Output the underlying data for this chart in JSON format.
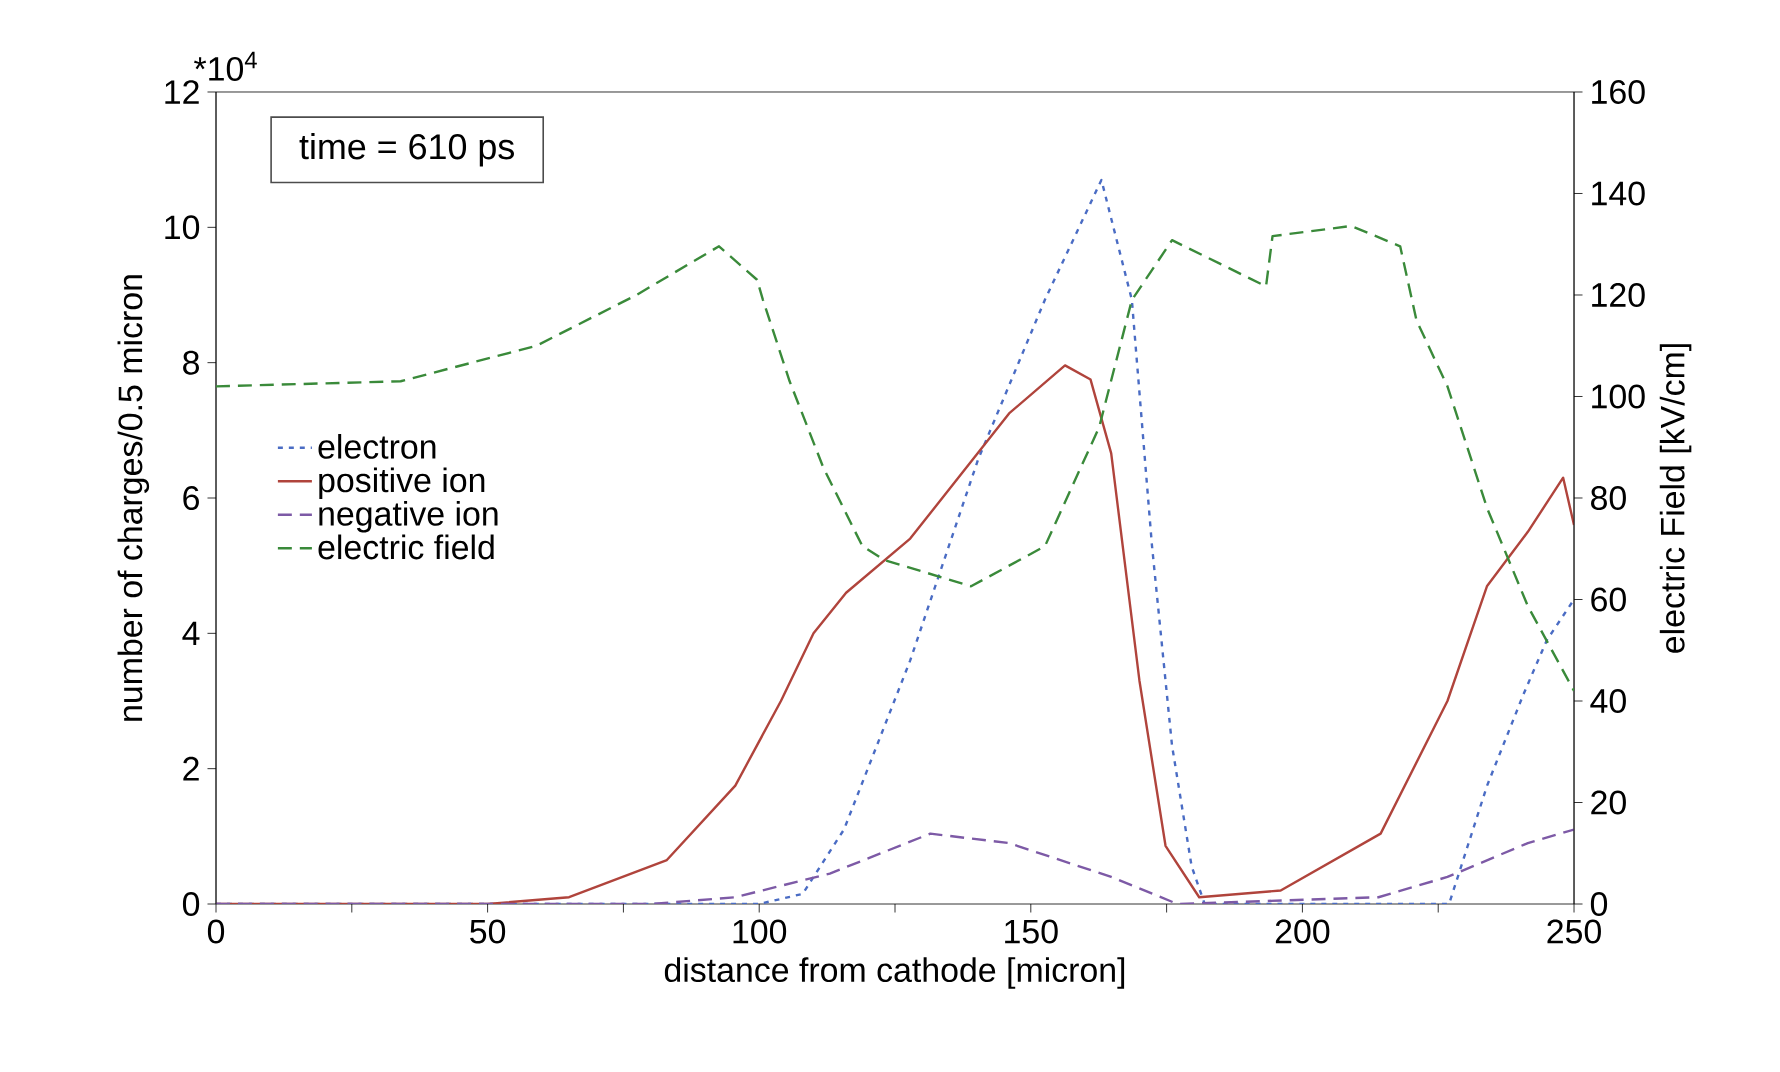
{
  "chart_data": {
    "type": "line",
    "xlabel": "distance from cathode [micron]",
    "ylabel": "number of charges/0.5 micron",
    "y2label": "electric Field [kV/cm]",
    "annotations": [
      "time = 610 ps",
      "*10$^{4}$"
    ],
    "xlim": [
      0,
      250
    ],
    "ylim": [
      0,
      12
    ],
    "y2lim": [
      0,
      160
    ],
    "xticks": [
      0,
      {
        "value": 25,
        "label": null
      },
      50,
      {
        "value": 75,
        "label": null
      },
      100,
      {
        "value": 125,
        "label": null
      },
      150,
      {
        "value": 175,
        "label": null
      },
      200,
      {
        "value": 225,
        "label": null
      },
      250
    ],
    "yticks": [
      0,
      2,
      4,
      6,
      8,
      10,
      12
    ],
    "y2ticks": [
      0,
      20,
      40,
      60,
      80,
      100,
      120,
      140,
      160
    ],
    "grid": false,
    "legend": "left",
    "marker": "none",
    "series": [
      {
        "name": "electron",
        "color": "#4a6cc4",
        "line_style": "dotted",
        "x": [
          0,
          100,
          108,
          115.6,
          127.8,
          140.3,
          152.6,
          163,
          168.6,
          172.3,
          176,
          179.6,
          182,
          227,
          234,
          240.7,
          245,
          250
        ],
        "values": [
          0,
          0,
          0.15,
          1.1,
          3.6,
          6.57,
          8.93,
          10.7,
          8.93,
          5.3,
          2.34,
          0.56,
          0,
          0,
          1.75,
          3.1,
          3.9,
          4.5
        ]
      },
      {
        "name": "positive ion",
        "color": "#b0443c",
        "line_style": "solid",
        "x": [
          0,
          50,
          65,
          83,
          95.6,
          104,
          110,
          116,
          127.8,
          146,
          156.3,
          161,
          164.8,
          170,
          174.8,
          181,
          196,
          214.4,
          226.7,
          234,
          241.5,
          248,
          250
        ],
        "values": [
          0,
          0,
          0.1,
          0.65,
          1.75,
          3.0,
          4.0,
          4.6,
          5.4,
          7.25,
          7.96,
          7.75,
          6.66,
          3.3,
          0.86,
          0.1,
          0.2,
          1.04,
          3.0,
          4.7,
          5.5,
          6.3,
          5.6
        ]
      },
      {
        "name": "negative ion",
        "color": "#7d5aa6",
        "line_style": "dashed",
        "x": [
          0,
          80,
          95.6,
          113,
          131.5,
          146,
          164.8,
          177,
          214,
          226.7,
          241.5,
          250
        ],
        "values": [
          0,
          0,
          0.1,
          0.45,
          1.04,
          0.9,
          0.4,
          0,
          0.1,
          0.4,
          0.9,
          1.1
        ]
      },
      {
        "name": "electric field",
        "color": "#3a8a3a",
        "line_style": "dashed",
        "axis": "y2",
        "x": [
          0,
          34,
          59,
          77.4,
          92.6,
          99.6,
          100.7,
          105.6,
          111.8,
          119,
          123,
          139,
          152.6,
          162.6,
          168.6,
          176,
          193.3,
          194.5,
          209,
          218,
          221,
          226.7,
          234,
          241.5,
          250
        ],
        "values": [
          102,
          103,
          110,
          120,
          129.6,
          123,
          119,
          103,
          86,
          70.5,
          67.8,
          62.6,
          70.5,
          94,
          119,
          130.8,
          121.7,
          131.6,
          133.6,
          129.6,
          115,
          102,
          78,
          58.7,
          42
        ]
      }
    ]
  }
}
